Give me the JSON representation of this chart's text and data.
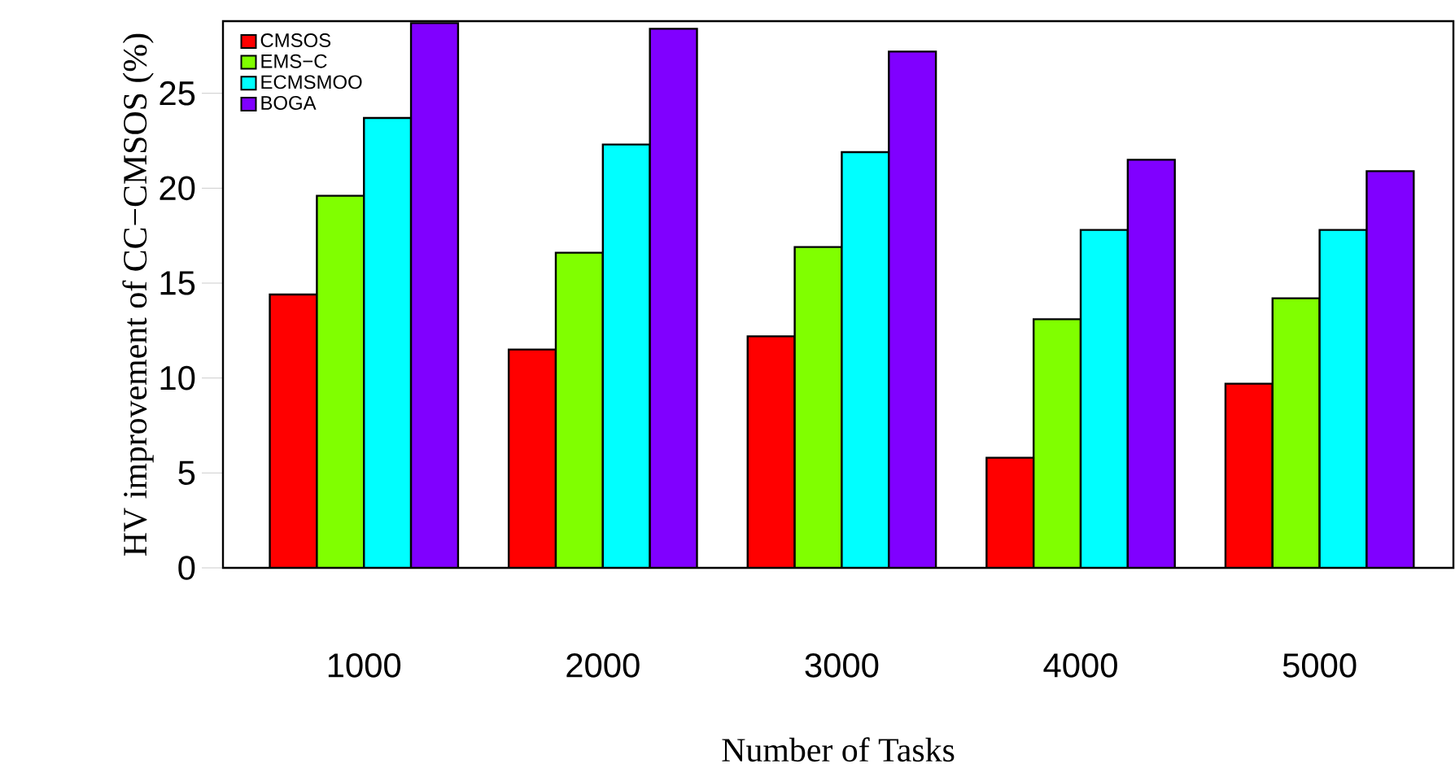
{
  "chart_data": {
    "type": "bar",
    "xlabel": "Number of Tasks",
    "ylabel": "HV improvement of CC−CMSOS (%)",
    "categories": [
      "1000",
      "2000",
      "3000",
      "4000",
      "5000"
    ],
    "series": [
      {
        "name": "CMSOS",
        "color": "#ff0000",
        "values": [
          14.4,
          11.5,
          12.2,
          5.8,
          9.7
        ]
      },
      {
        "name": "EMS−C",
        "color": "#80ff00",
        "values": [
          19.6,
          16.6,
          16.9,
          13.1,
          14.2
        ]
      },
      {
        "name": "ECMSMOO",
        "color": "#00ffff",
        "values": [
          23.7,
          22.3,
          21.9,
          17.8,
          17.8
        ]
      },
      {
        "name": "BOGA",
        "color": "#8000ff",
        "values": [
          28.7,
          28.4,
          27.2,
          21.5,
          20.9
        ]
      }
    ],
    "ylim": [
      0,
      28.8
    ],
    "yticks": [
      0,
      5,
      10,
      15,
      20,
      25
    ],
    "legend": "top left"
  }
}
